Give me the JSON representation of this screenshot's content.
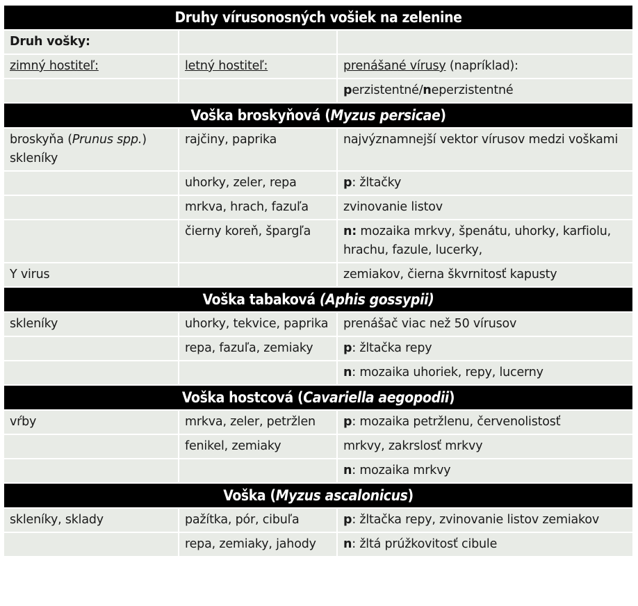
{
  "title": "Druhy vírusonosných vošiek na zelenine",
  "label_species": "Druh vošky:",
  "header": {
    "winter_host": "zimný hostiteľ:",
    "summer_host": "letný hostiteľ:",
    "viruses": "prenášané vírusy",
    "viruses_suffix": "(napríklad):",
    "persistent_bold": "p",
    "persistent_rest": "erzistentné/",
    "nonpersistent_bold": "n",
    "nonpersistent_rest": "eperzistentné"
  },
  "sections": [
    {
      "name": "Voška broskyňová (",
      "latin": "Myzus persicae",
      "close": ")",
      "rows": [
        {
          "winter": "broskyňa (",
          "winter_latin": "Prunus spp.",
          "winter_close": ")",
          "winter2": "skleníky",
          "summer": "rajčiny, paprika",
          "prefix": "",
          "virus": "najvýznamnejší vektor vírusov medzi voškami"
        },
        {
          "winter": "",
          "summer": "uhorky, zeler, repa",
          "prefix": "p",
          "virus": ": žltačky"
        },
        {
          "winter": "",
          "summer": "mrkva, hrach, fazuľa",
          "prefix": "",
          "virus": "zvinovanie listov"
        },
        {
          "winter": "",
          "summer": "čierny koreň, špargľa",
          "prefix": "n:",
          "virus": " mozaika mrkvy, špenátu, uhorky, karfiolu, hrachu, fazule, lucerky,"
        },
        {
          "winter": "Y virus",
          "summer": "",
          "prefix": "",
          "virus": "zemiakov, čierna škvrnitosť kapusty"
        }
      ]
    },
    {
      "name": "Voška tabaková ",
      "latin": "(Aphis gossypii)",
      "close": "",
      "rows": [
        {
          "winter": "skleníky",
          "summer": "uhorky, tekvice, paprika",
          "prefix": "",
          "virus": "prenášač viac než 50 vírusov"
        },
        {
          "winter": "",
          "summer": "repa, fazuľa, zemiaky",
          "prefix": "p",
          "virus": ": žltačka repy"
        },
        {
          "winter": "",
          "summer": "",
          "prefix": "n",
          "virus": ": mozaika uhoriek, repy, lucerny"
        }
      ]
    },
    {
      "name": "Voška hostcová (",
      "latin": "Cavariella aegopodii",
      "close": ")",
      "rows": [
        {
          "winter": "vŕby",
          "summer": "mrkva, zeler, petržlen",
          "prefix": "p",
          "virus": ": mozaika petržlenu, červenolistosť"
        },
        {
          "winter": "",
          "summer": "fenikel, zemiaky",
          "prefix": "",
          "virus": "mrkvy, zakrslosť mrkvy"
        },
        {
          "winter": "",
          "summer": "",
          "prefix": "n",
          "virus": ": mozaika mrkvy"
        }
      ]
    },
    {
      "name": "Voška (",
      "latin": "Myzus ascalonicus",
      "close": ")",
      "rows": [
        {
          "winter": "skleníky, sklady",
          "summer": "pažítka, pór, cibuľa",
          "prefix": "p",
          "virus": ": žltačka repy, zvinovanie listov zemiakov"
        },
        {
          "winter": "",
          "summer": "repa, zemiaky, jahody",
          "prefix": "n",
          "virus": ": žltá prúžkovitosť cibule"
        }
      ]
    }
  ]
}
